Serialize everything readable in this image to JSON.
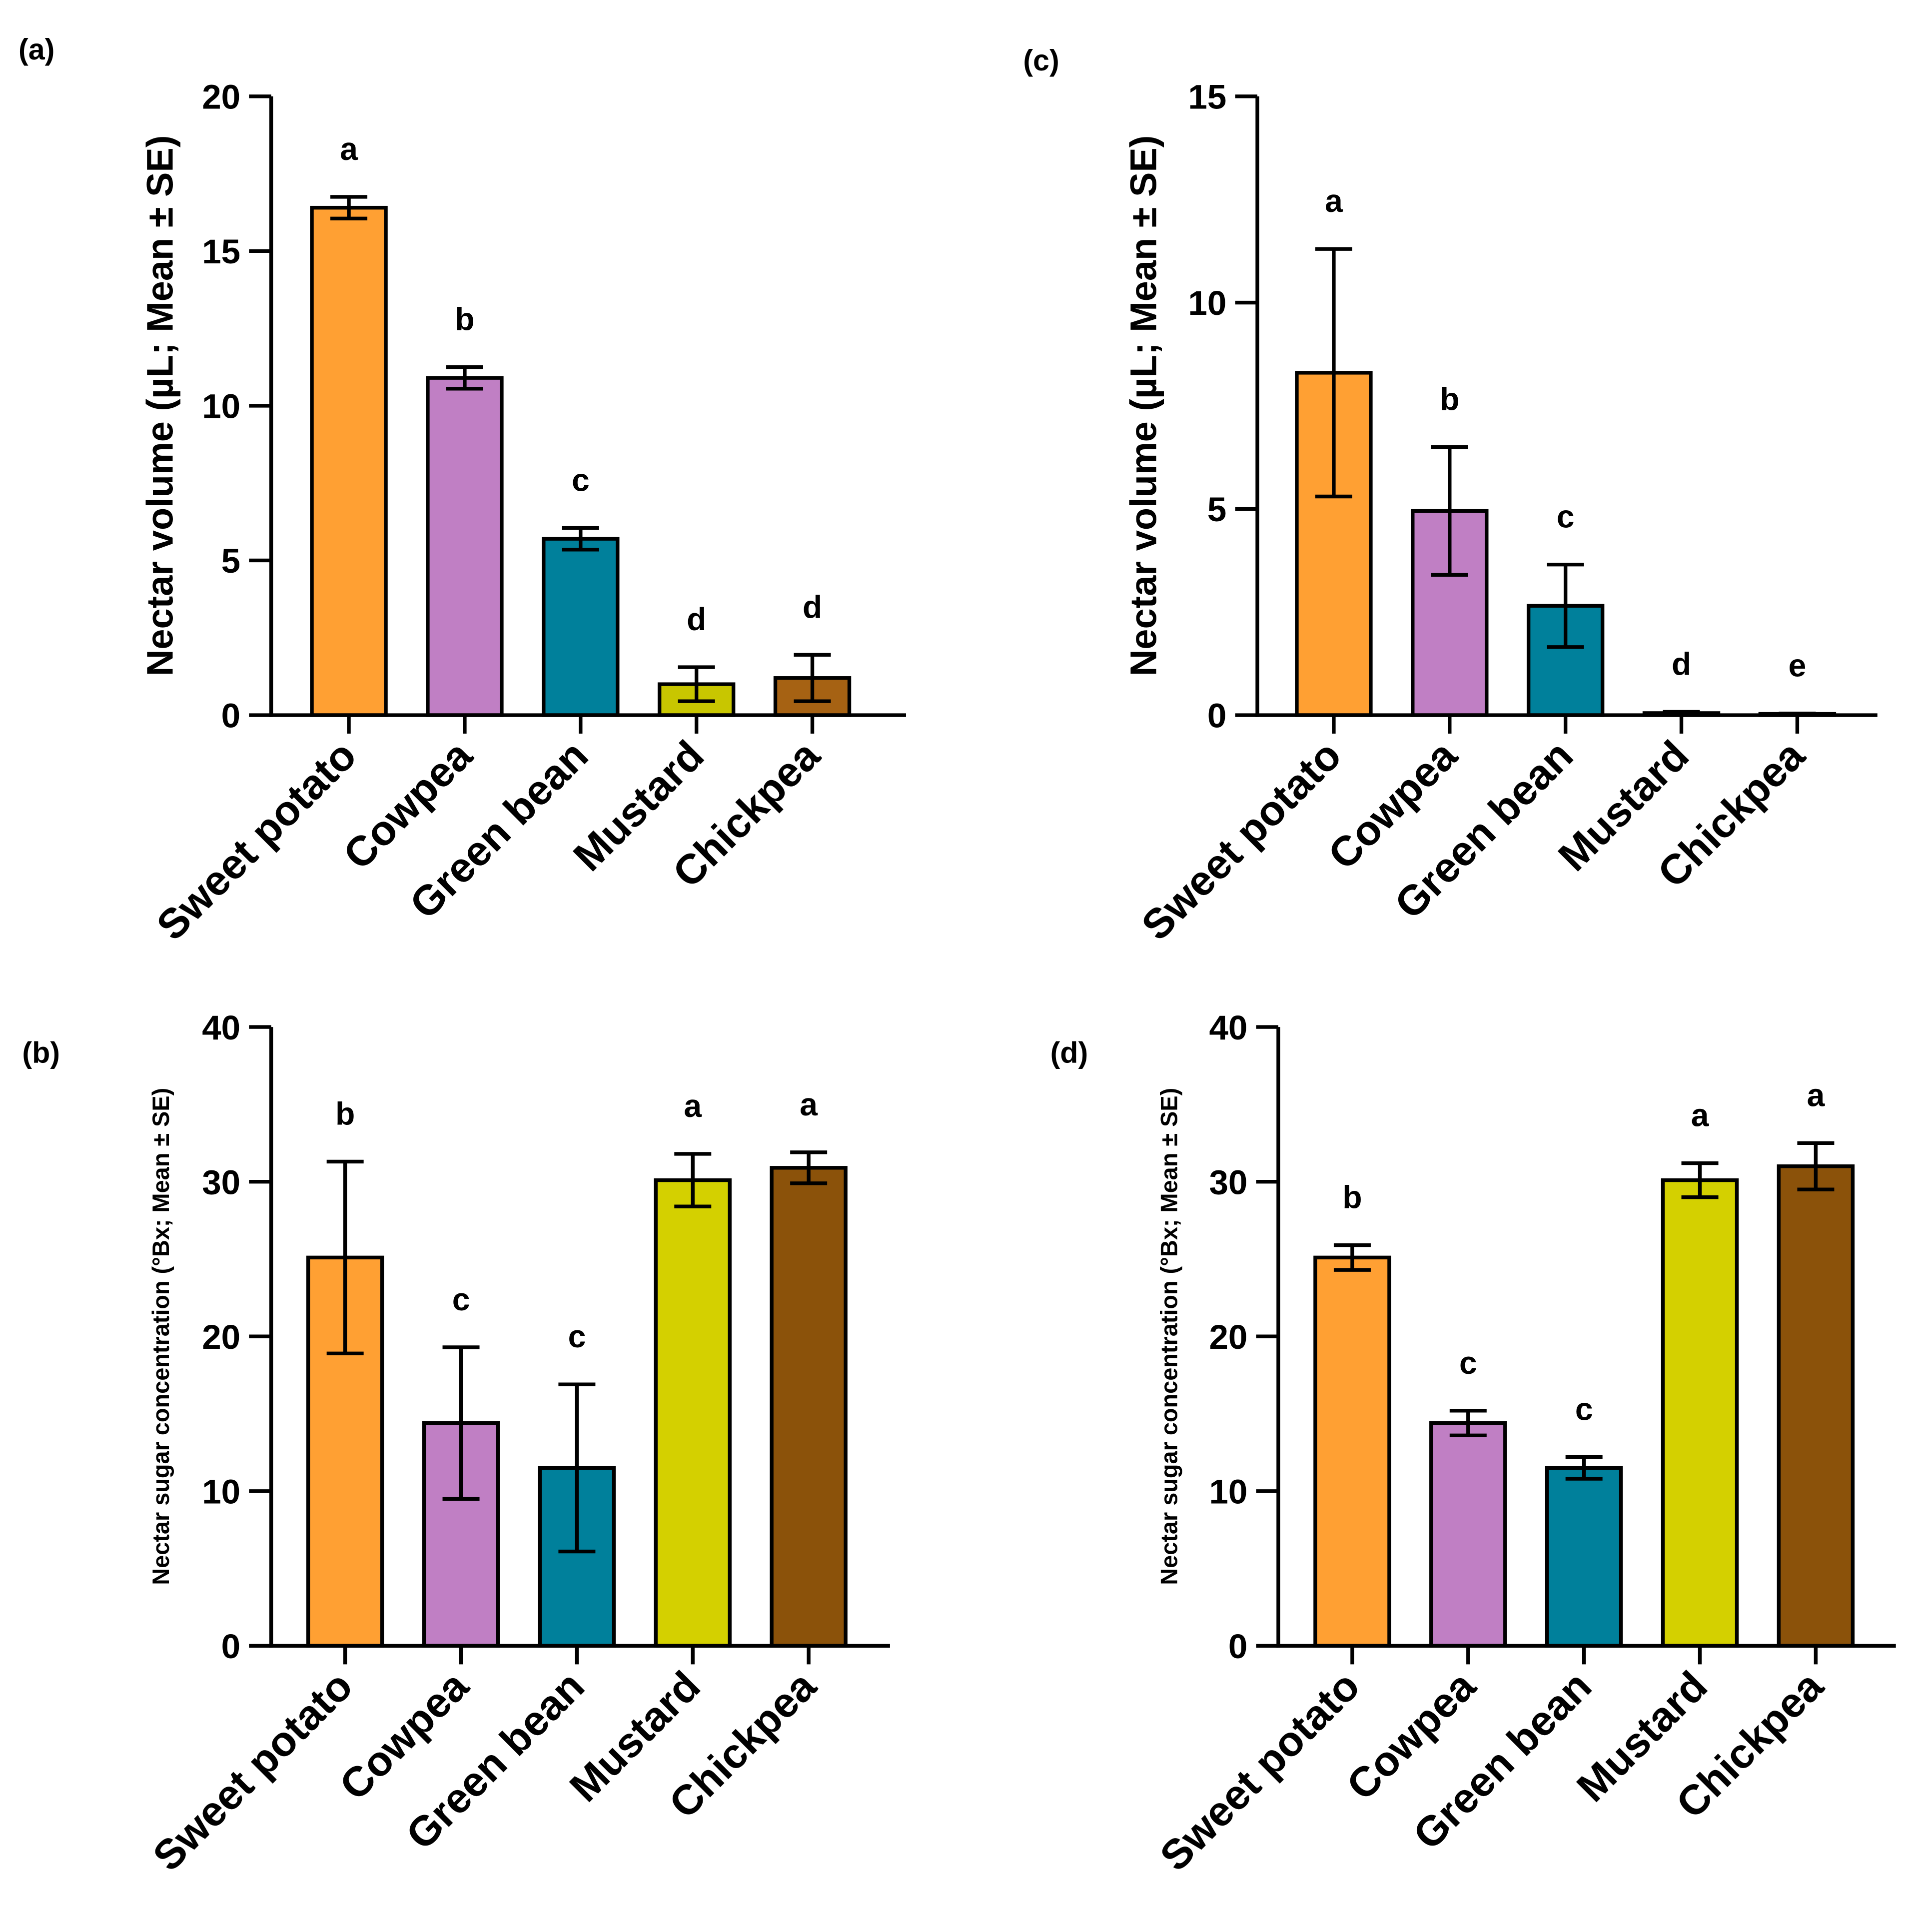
{
  "chart_data": [
    {
      "panel": "(a)",
      "type": "bar",
      "ylabel": "Nectar volume (µL; Mean ± SE)",
      "ylim": [
        0,
        20
      ],
      "yticks": [
        0,
        5,
        10,
        15,
        20
      ],
      "categories": [
        "Sweet potato",
        "Cowpea",
        "Green bean",
        "Mustard",
        "Chickpea"
      ],
      "values": [
        16.4,
        10.9,
        5.7,
        1.0,
        1.2
      ],
      "errors": [
        0.35,
        0.35,
        0.35,
        0.55,
        0.75
      ],
      "letters": [
        "a",
        "b",
        "c",
        "d",
        "d"
      ],
      "colors": [
        "#FFA033",
        "#C07FC4",
        "#00809B",
        "#C8C600",
        "#A66213"
      ]
    },
    {
      "panel": "(b)",
      "type": "bar",
      "ylabel": "Nectar sugar concentration (°Bx; Mean ± SE)",
      "ylim": [
        0,
        40
      ],
      "yticks": [
        0,
        10,
        20,
        30,
        40
      ],
      "categories": [
        "Sweet potato",
        "Cowpea",
        "Green bean",
        "Mustard",
        "Chickpea"
      ],
      "values": [
        25.1,
        14.4,
        11.5,
        30.1,
        30.9
      ],
      "errors": [
        6.2,
        4.9,
        5.4,
        1.7,
        1.0
      ],
      "letters": [
        "b",
        "c",
        "c",
        "a",
        "a"
      ],
      "colors": [
        "#FFA033",
        "#C07FC4",
        "#00809B",
        "#D4D000",
        "#8B520A"
      ]
    },
    {
      "panel": "(c)",
      "type": "bar",
      "ylabel": "Nectar volume (µL; Mean ± SE)",
      "ylim": [
        0,
        15
      ],
      "yticks": [
        0,
        5,
        10,
        15
      ],
      "categories": [
        "Sweet potato",
        "Cowpea",
        "Green bean",
        "Mustard",
        "Chickpea"
      ],
      "values": [
        8.3,
        4.95,
        2.65,
        0.05,
        0.03
      ],
      "errors": [
        3.0,
        1.55,
        1.0,
        0.03,
        0.01
      ],
      "letters": [
        "a",
        "b",
        "c",
        "d",
        "e"
      ],
      "colors": [
        "#FFA033",
        "#C07FC4",
        "#00809B",
        "#C8C600",
        "#A66213"
      ]
    },
    {
      "panel": "(d)",
      "type": "bar",
      "ylabel": "Nectar sugar concentration (°Bx; Mean ± SE)",
      "ylim": [
        0,
        40
      ],
      "yticks": [
        0,
        10,
        20,
        30,
        40
      ],
      "categories": [
        "Sweet potato",
        "Cowpea",
        "Green bean",
        "Mustard",
        "Chickpea"
      ],
      "values": [
        25.1,
        14.4,
        11.5,
        30.1,
        31.0
      ],
      "errors": [
        0.8,
        0.8,
        0.7,
        1.1,
        1.5
      ],
      "letters": [
        "b",
        "c",
        "c",
        "a",
        "a"
      ],
      "colors": [
        "#FFA033",
        "#C07FC4",
        "#00809B",
        "#D4D000",
        "#8B520A"
      ]
    }
  ]
}
